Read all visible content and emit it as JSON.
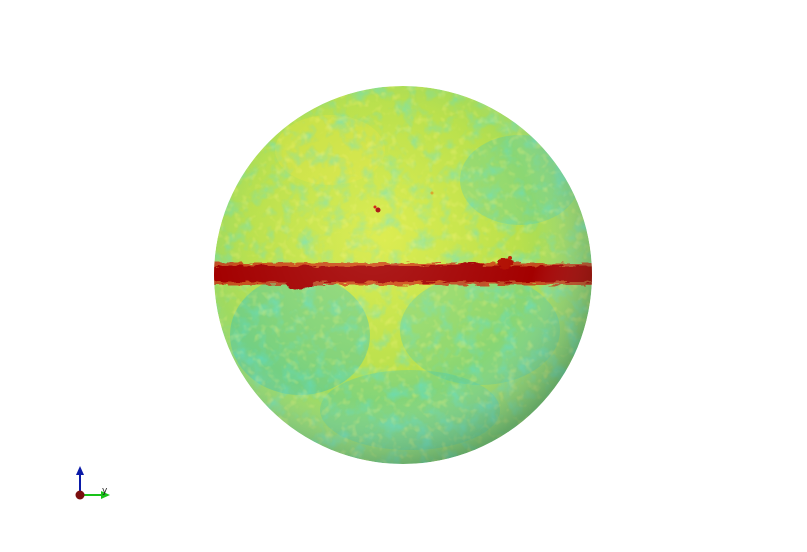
{
  "scene": {
    "background": "#ffffff",
    "object": "sphere",
    "colormap_colors": {
      "low": "#1aaec0",
      "mid_low": "#3fd0b8",
      "mid": "#8bdb6a",
      "mid_high": "#c8e63a",
      "high": "#f0e838",
      "band": "#a30000",
      "band_edge": "#d01000"
    }
  },
  "axes_widget": {
    "x_label": "",
    "y_label": "y",
    "z_label": "",
    "x_color": "#a30000",
    "y_color": "#19c219",
    "z_color": "#0a1aa8"
  }
}
